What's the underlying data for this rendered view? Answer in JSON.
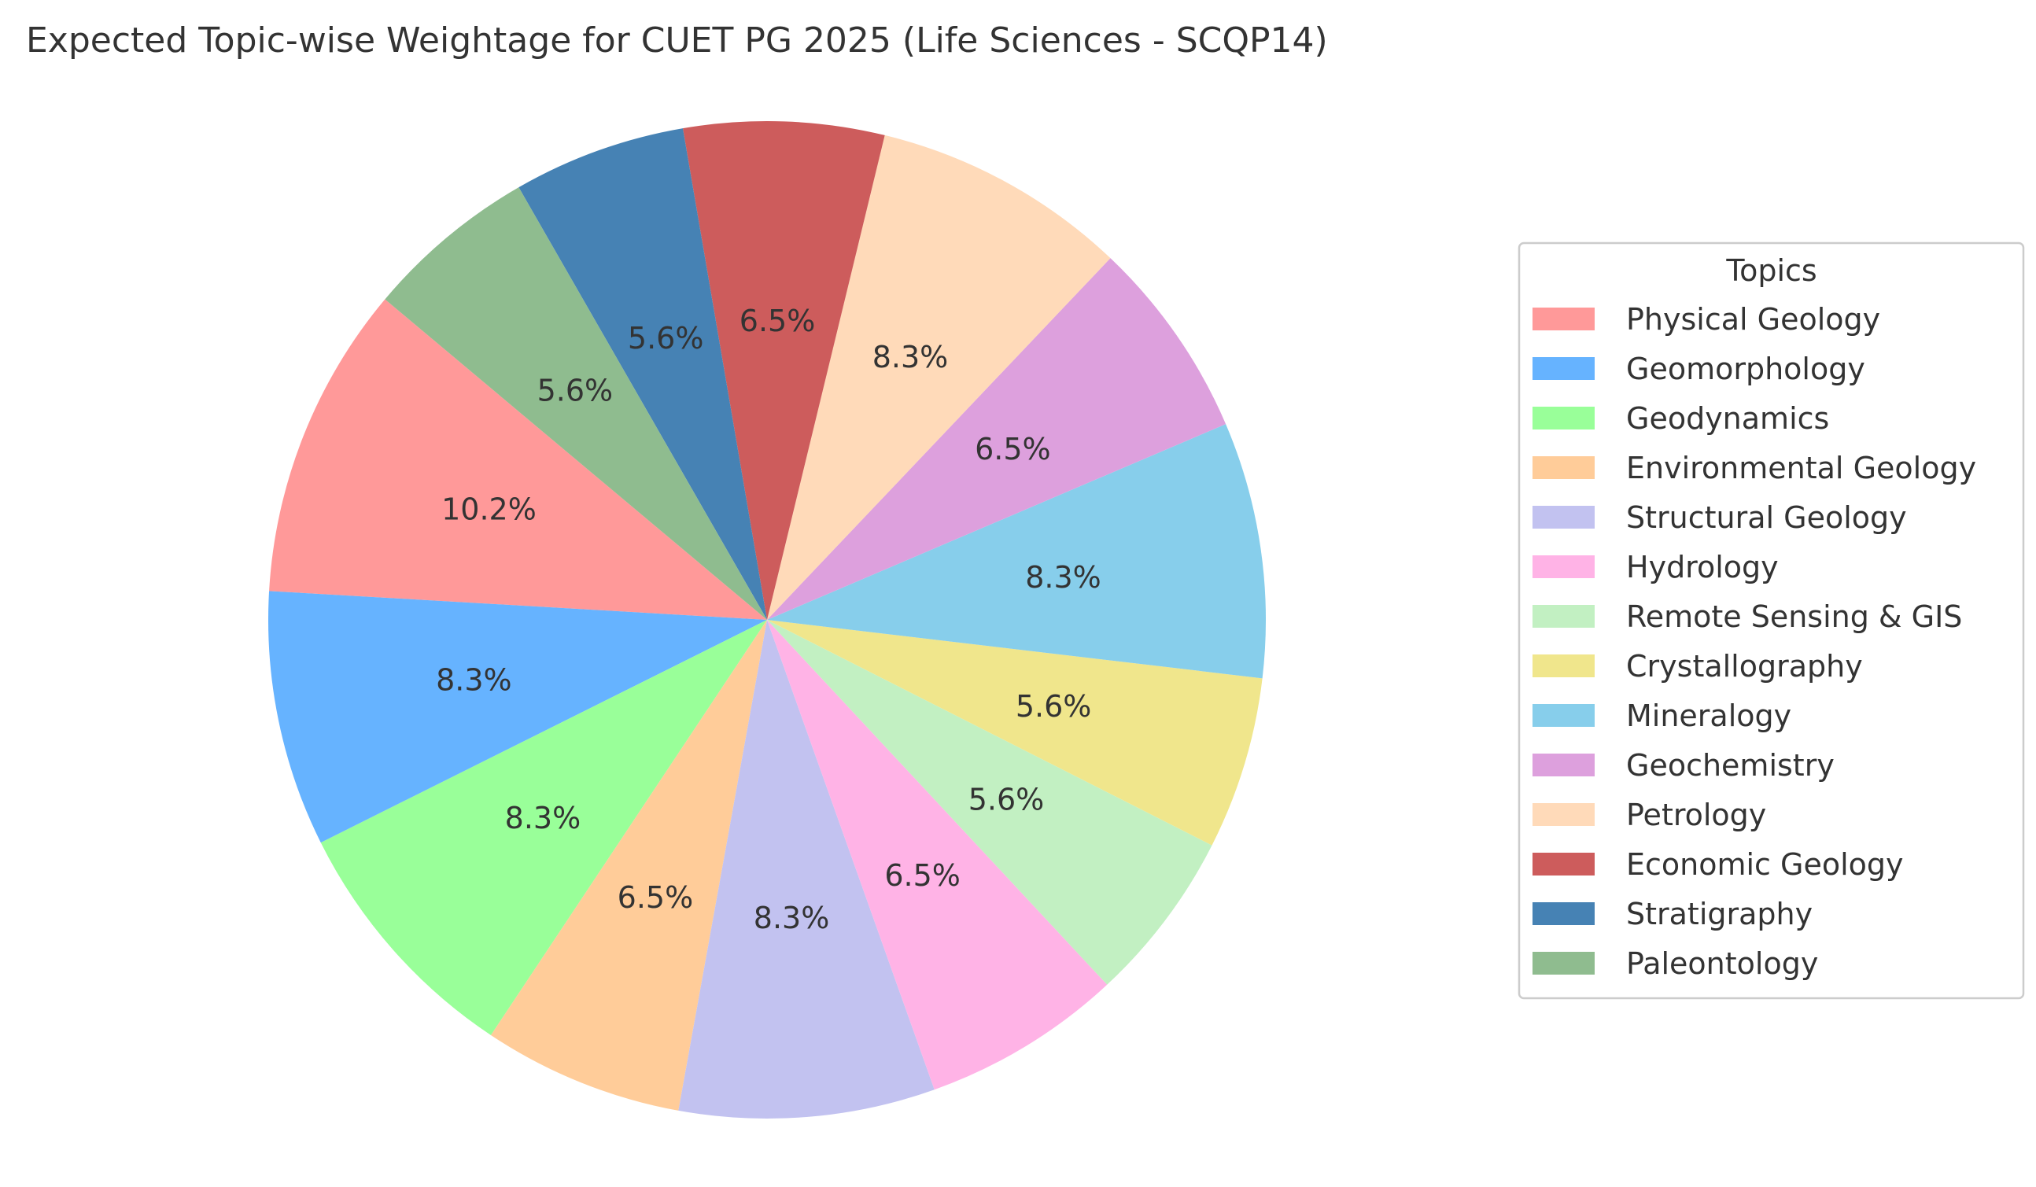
{
  "chart_data": {
    "type": "pie",
    "title": "Expected Topic-wise Weightage for CUET PG 2025 (Life Sciences - SCQP14)",
    "legend_title": "Topics",
    "legend_placement": "right",
    "start_angle_deg": 140,
    "direction": "counterclockwise",
    "slices": [
      {
        "label": "Physical Geology",
        "value": 10.2,
        "display": "10.2%",
        "color": "#ff9999"
      },
      {
        "label": "Geomorphology",
        "value": 8.3,
        "display": "8.3%",
        "color": "#66b3ff"
      },
      {
        "label": "Geodynamics",
        "value": 8.3,
        "display": "8.3%",
        "color": "#99ff99"
      },
      {
        "label": "Environmental Geology",
        "value": 6.5,
        "display": "6.5%",
        "color": "#ffcc99"
      },
      {
        "label": "Structural Geology",
        "value": 8.3,
        "display": "8.3%",
        "color": "#c2c2f0"
      },
      {
        "label": "Hydrology",
        "value": 6.5,
        "display": "6.5%",
        "color": "#ffb3e6"
      },
      {
        "label": "Remote Sensing & GIS",
        "value": 5.6,
        "display": "5.6%",
        "color": "#c2f0c2"
      },
      {
        "label": "Crystallography",
        "value": 5.6,
        "display": "5.6%",
        "color": "#f0e68c"
      },
      {
        "label": "Mineralogy",
        "value": 8.3,
        "display": "8.3%",
        "color": "#87ceeb"
      },
      {
        "label": "Geochemistry",
        "value": 6.5,
        "display": "6.5%",
        "color": "#dda0dd"
      },
      {
        "label": "Petrology",
        "value": 8.3,
        "display": "8.3%",
        "color": "#ffdab9"
      },
      {
        "label": "Economic Geology",
        "value": 6.5,
        "display": "6.5%",
        "color": "#cd5c5c"
      },
      {
        "label": "Stratigraphy",
        "value": 5.6,
        "display": "5.6%",
        "color": "#4682b4"
      },
      {
        "label": "Paleontology",
        "value": 5.6,
        "display": "5.6%",
        "color": "#8fbc8f"
      }
    ]
  }
}
